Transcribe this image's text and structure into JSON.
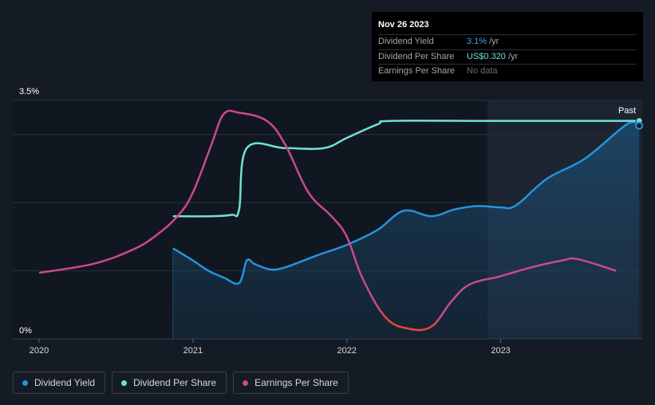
{
  "tooltip": {
    "date": "Nov 26 2023",
    "rows": [
      {
        "label": "Dividend Yield",
        "value": "3.1%",
        "unit": "/yr"
      },
      {
        "label": "Dividend Per Share",
        "value": "US$0.320",
        "unit": "/yr"
      },
      {
        "label": "Earnings Per Share",
        "value": "No data",
        "unit": ""
      }
    ]
  },
  "legend": [
    {
      "label": "Dividend Yield",
      "color": "#2394df"
    },
    {
      "label": "Dividend Per Share",
      "color": "#6fe3d1"
    },
    {
      "label": "Earnings Per Share",
      "color": "#c94a8c"
    }
  ],
  "chart_data": {
    "type": "line",
    "y_axis_labels": {
      "top": "3.5%",
      "bottom": "0%"
    },
    "ylim": [
      0,
      3.5
    ],
    "x_ticks": [
      "2020",
      "2021",
      "2022",
      "2023"
    ],
    "past_label": "Past",
    "series": [
      {
        "name": "Dividend Yield",
        "color": "#2394df",
        "area": true,
        "points": [
          [
            2020.87,
            1.33
          ],
          [
            2021.0,
            1.15
          ],
          [
            2021.1,
            1.0
          ],
          [
            2021.2,
            0.9
          ],
          [
            2021.3,
            0.82
          ],
          [
            2021.35,
            1.15
          ],
          [
            2021.4,
            1.1
          ],
          [
            2021.5,
            1.02
          ],
          [
            2021.6,
            1.05
          ],
          [
            2021.8,
            1.22
          ],
          [
            2022.0,
            1.38
          ],
          [
            2022.2,
            1.6
          ],
          [
            2022.37,
            1.88
          ],
          [
            2022.55,
            1.8
          ],
          [
            2022.7,
            1.9
          ],
          [
            2022.85,
            1.95
          ],
          [
            2023.0,
            1.93
          ],
          [
            2023.1,
            1.96
          ],
          [
            2023.3,
            2.35
          ],
          [
            2023.55,
            2.65
          ],
          [
            2023.82,
            3.15
          ],
          [
            2023.9,
            3.13
          ]
        ]
      },
      {
        "name": "Dividend Per Share",
        "color": "#6fe3d1",
        "area": false,
        "points": [
          [
            2020.87,
            1.8
          ],
          [
            2021.1,
            1.8
          ],
          [
            2021.25,
            1.82
          ],
          [
            2021.3,
            1.9
          ],
          [
            2021.35,
            2.8
          ],
          [
            2021.6,
            2.8
          ],
          [
            2021.85,
            2.8
          ],
          [
            2022.0,
            2.95
          ],
          [
            2022.2,
            3.15
          ],
          [
            2022.3,
            3.2
          ],
          [
            2023.0,
            3.2
          ],
          [
            2023.9,
            3.2
          ]
        ]
      },
      {
        "name": "Earnings Per Share",
        "color": "#c94a8c",
        "negative_color": "#e5453a",
        "negative_range": [
          2022.23,
          2022.58
        ],
        "area": false,
        "points": [
          [
            2020.0,
            0.97
          ],
          [
            2020.35,
            1.1
          ],
          [
            2020.6,
            1.3
          ],
          [
            2020.75,
            1.5
          ],
          [
            2020.9,
            1.8
          ],
          [
            2021.0,
            2.15
          ],
          [
            2021.12,
            2.85
          ],
          [
            2021.2,
            3.3
          ],
          [
            2021.3,
            3.32
          ],
          [
            2021.48,
            3.2
          ],
          [
            2021.6,
            2.85
          ],
          [
            2021.75,
            2.15
          ],
          [
            2021.9,
            1.8
          ],
          [
            2022.0,
            1.5
          ],
          [
            2022.1,
            0.9
          ],
          [
            2022.25,
            0.32
          ],
          [
            2022.4,
            0.15
          ],
          [
            2022.55,
            0.18
          ],
          [
            2022.68,
            0.55
          ],
          [
            2022.8,
            0.8
          ],
          [
            2023.0,
            0.92
          ],
          [
            2023.2,
            1.05
          ],
          [
            2023.4,
            1.15
          ],
          [
            2023.5,
            1.17
          ],
          [
            2023.75,
            1.0
          ]
        ]
      }
    ]
  }
}
